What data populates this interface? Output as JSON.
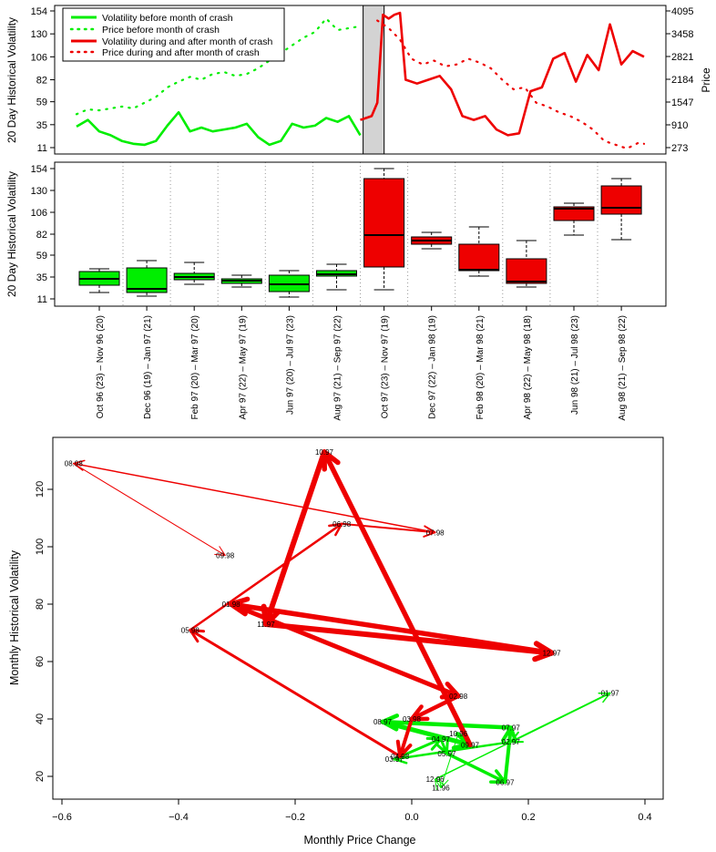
{
  "colors": {
    "before": "#00ee00",
    "after": "#ee0000",
    "crash_band": "#d3d3d3"
  },
  "chart_data": [
    {
      "type": "line",
      "panel": "top",
      "title": "",
      "ylabel": "20 Day Historical Volatility",
      "ylabel_right": "Price",
      "ylim": [
        11,
        154
      ],
      "yticks": [
        "11",
        "35",
        "59",
        "82",
        "106",
        "130",
        "154"
      ],
      "ytick_values": [
        11,
        35,
        59,
        82,
        106,
        130,
        154
      ],
      "right_ylim": [
        273,
        4095
      ],
      "right_yticks": [
        "273",
        "910",
        "1547",
        "2184",
        "2821",
        "3458",
        "4095"
      ],
      "right_ytick_values": [
        273,
        910,
        1547,
        2184,
        2821,
        3458,
        4095
      ],
      "x_index_range": [
        0,
        100
      ],
      "crash_band": [
        50.5,
        54.2
      ],
      "legend": [
        {
          "label": "Volatility before month of crash",
          "style": "solid",
          "series": "before"
        },
        {
          "label": "Price before month of crash",
          "style": "dotted",
          "series": "before"
        },
        {
          "label": "Volatility during and after month of crash",
          "style": "solid",
          "series": "after"
        },
        {
          "label": "Price during and after month of crash",
          "style": "dotted",
          "series": "after"
        }
      ],
      "series": [
        {
          "name": "Volatility before month of crash",
          "axis": "left",
          "x": [
            0,
            2,
            4,
            6,
            8,
            10,
            12,
            14,
            16,
            18,
            20,
            22,
            24,
            26,
            28,
            30,
            32,
            34,
            36,
            38,
            40,
            42,
            44,
            46,
            48,
            50
          ],
          "values": [
            33,
            40,
            28,
            24,
            18,
            15,
            14,
            18,
            34,
            48,
            28,
            32,
            28,
            30,
            32,
            36,
            22,
            14,
            18,
            36,
            32,
            34,
            42,
            38,
            44,
            24
          ]
        },
        {
          "name": "Price before month of crash",
          "axis": "left",
          "x": [
            0,
            2,
            4,
            6,
            8,
            10,
            12,
            14,
            16,
            18,
            20,
            22,
            24,
            26,
            28,
            30,
            32,
            34,
            36,
            38,
            40,
            42,
            44,
            46,
            48,
            50
          ],
          "values": [
            46,
            51,
            50,
            52,
            54,
            52,
            58,
            64,
            74,
            80,
            85,
            82,
            88,
            90,
            86,
            88,
            94,
            102,
            110,
            118,
            126,
            132,
            146,
            134,
            136,
            138
          ]
        },
        {
          "name": "Volatility during and after month of crash",
          "axis": "left",
          "x": [
            50,
            52,
            53,
            54,
            55,
            56,
            57,
            58,
            60,
            62,
            64,
            66,
            68,
            70,
            72,
            74,
            76,
            78,
            80,
            82,
            84,
            86,
            88,
            90,
            92,
            94,
            96,
            98,
            100
          ],
          "values": [
            40,
            44,
            58,
            150,
            146,
            150,
            152,
            82,
            78,
            82,
            86,
            72,
            44,
            40,
            44,
            30,
            24,
            26,
            70,
            74,
            104,
            110,
            80,
            108,
            92,
            140,
            98,
            112,
            106
          ]
        },
        {
          "name": "Price during and after month of crash",
          "axis": "left",
          "x": [
            53,
            55,
            57,
            59,
            61,
            63,
            65,
            67,
            69,
            71,
            73,
            75,
            77,
            79,
            81,
            83,
            85,
            87,
            89,
            91,
            93,
            95,
            97,
            99,
            100
          ],
          "values": [
            144,
            136,
            124,
            104,
            98,
            102,
            96,
            98,
            104,
            100,
            94,
            82,
            72,
            74,
            58,
            54,
            48,
            44,
            38,
            30,
            18,
            14,
            10,
            16,
            15
          ]
        }
      ]
    },
    {
      "type": "box",
      "panel": "middle",
      "ylabel": "20 Day Historical Volatility",
      "ylim": [
        11,
        154
      ],
      "yticks": [
        "11",
        "35",
        "59",
        "82",
        "106",
        "130",
        "154"
      ],
      "ytick_values": [
        11,
        35,
        59,
        82,
        106,
        130,
        154
      ],
      "categories": [
        "Oct 96 (23) – Nov 96 (20)",
        "Dec 96 (19) – Jan 97 (21)",
        "Feb 97 (20) – Mar 97 (20)",
        "Apr 97 (22) – May 97 (19)",
        "Jun 97 (20) – Jul 97 (23)",
        "Aug 97 (21) – Sep 97 (22)",
        "Oct 97 (23) – Nov 97 (19)",
        "Dec 97 (22) – Jan 98 (19)",
        "Feb 98 (20) – Mar 98 (21)",
        "Apr 98 (22) – May 98 (18)",
        "Jun 98 (21) – Jul 98 (23)",
        "Aug 98 (21) – Sep 98 (22)"
      ],
      "boxes": [
        {
          "min": 18,
          "q1": 26,
          "median": 33,
          "q3": 41,
          "max": 44,
          "group": "before"
        },
        {
          "min": 14,
          "q1": 18,
          "median": 22,
          "q3": 45,
          "max": 53,
          "group": "before"
        },
        {
          "min": 27,
          "q1": 32,
          "median": 35,
          "q3": 39,
          "max": 51,
          "group": "before"
        },
        {
          "min": 24,
          "q1": 28,
          "median": 31,
          "q3": 33,
          "max": 37,
          "group": "before"
        },
        {
          "min": 13,
          "q1": 19,
          "median": 27,
          "q3": 37,
          "max": 42,
          "group": "before"
        },
        {
          "min": 21,
          "q1": 36,
          "median": 38,
          "q3": 42,
          "max": 49,
          "group": "before"
        },
        {
          "min": 21,
          "q1": 46,
          "median": 81,
          "q3": 143,
          "max": 154,
          "group": "after"
        },
        {
          "min": 66,
          "q1": 71,
          "median": 75,
          "q3": 79,
          "max": 84,
          "group": "after"
        },
        {
          "min": 36,
          "q1": 42,
          "median": 43,
          "q3": 71,
          "max": 90,
          "group": "after"
        },
        {
          "min": 24,
          "q1": 28,
          "median": 30,
          "q3": 55,
          "max": 75,
          "group": "after"
        },
        {
          "min": 81,
          "q1": 97,
          "median": 110,
          "q3": 112,
          "max": 116,
          "group": "after"
        },
        {
          "min": 76,
          "q1": 104,
          "median": 111,
          "q3": 135,
          "max": 143,
          "group": "after"
        }
      ]
    },
    {
      "type": "scatter",
      "panel": "bottom",
      "xlabel": "Monthly Price Change",
      "ylabel": "Monthly Historical Volatility",
      "xlim": [
        -0.62,
        0.42
      ],
      "ylim": [
        14,
        133
      ],
      "xticks": [
        "−0.6",
        "−0.4",
        "−0.2",
        "0.0",
        "0.2",
        "0.4"
      ],
      "xtick_values": [
        -0.6,
        -0.4,
        -0.2,
        0.0,
        0.2,
        0.4
      ],
      "yticks": [
        "20",
        "40",
        "60",
        "80",
        "100",
        "120"
      ],
      "ytick_values": [
        20,
        40,
        60,
        80,
        100,
        120
      ],
      "points": [
        {
          "label": "11.96",
          "x": 0.05,
          "y": 16,
          "group": "before"
        },
        {
          "label": "12.96",
          "x": 0.04,
          "y": 19,
          "group": "before"
        },
        {
          "label": "01.97",
          "x": 0.34,
          "y": 49,
          "group": "before"
        },
        {
          "label": "02.97",
          "x": 0.17,
          "y": 32,
          "group": "before"
        },
        {
          "label": "03.97",
          "x": -0.03,
          "y": 26,
          "group": "before"
        },
        {
          "label": "04.97",
          "x": 0.05,
          "y": 33,
          "group": "before"
        },
        {
          "label": "05.97",
          "x": 0.06,
          "y": 28,
          "group": "before"
        },
        {
          "label": "06.97",
          "x": 0.16,
          "y": 18,
          "group": "before"
        },
        {
          "label": "07.97",
          "x": 0.17,
          "y": 37,
          "group": "before"
        },
        {
          "label": "08.97",
          "x": -0.05,
          "y": 39,
          "group": "before"
        },
        {
          "label": "09.97",
          "x": 0.1,
          "y": 31,
          "group": "before"
        },
        {
          "label": "10.96",
          "x": 0.08,
          "y": 35,
          "group": "before"
        },
        {
          "label": "10.97",
          "x": -0.15,
          "y": 133,
          "group": "after"
        },
        {
          "label": "11.97",
          "x": -0.25,
          "y": 73,
          "group": "after"
        },
        {
          "label": "12.97",
          "x": 0.24,
          "y": 63,
          "group": "after"
        },
        {
          "label": "01.98",
          "x": -0.31,
          "y": 80,
          "group": "after"
        },
        {
          "label": "02.98",
          "x": 0.08,
          "y": 48,
          "group": "after"
        },
        {
          "label": "03.98",
          "x": 0.0,
          "y": 40,
          "group": "after"
        },
        {
          "label": "04.98",
          "x": -0.02,
          "y": 27,
          "group": "after"
        },
        {
          "label": "05.98",
          "x": -0.38,
          "y": 71,
          "group": "after"
        },
        {
          "label": "06.98",
          "x": -0.12,
          "y": 108,
          "group": "after"
        },
        {
          "label": "07.98",
          "x": 0.04,
          "y": 105,
          "group": "after"
        },
        {
          "label": "08.98",
          "x": -0.58,
          "y": 129,
          "group": "after"
        },
        {
          "label": "09.98",
          "x": -0.32,
          "y": 97,
          "group": "after"
        }
      ],
      "arrows": [
        {
          "from": "10.96",
          "to": "11.96",
          "width": 1,
          "group": "before"
        },
        {
          "from": "11.96",
          "to": "12.96",
          "width": 1,
          "group": "before"
        },
        {
          "from": "12.96",
          "to": "01.97",
          "width": 1.5,
          "group": "before"
        },
        {
          "from": "01.97",
          "to": "02.97",
          "width": 2,
          "group": "before"
        },
        {
          "from": "02.97",
          "to": "03.97",
          "width": 2.5,
          "group": "before"
        },
        {
          "from": "03.97",
          "to": "04.97",
          "width": 3,
          "group": "before"
        },
        {
          "from": "04.97",
          "to": "05.97",
          "width": 3,
          "group": "before"
        },
        {
          "from": "05.97",
          "to": "06.97",
          "width": 3.5,
          "group": "before"
        },
        {
          "from": "06.97",
          "to": "07.97",
          "width": 4,
          "group": "before"
        },
        {
          "from": "07.97",
          "to": "08.97",
          "width": 4.5,
          "group": "before"
        },
        {
          "from": "08.97",
          "to": "09.97",
          "width": 5,
          "group": "before"
        },
        {
          "from": "09.97",
          "to": "10.97",
          "width": 5.5,
          "group": "after"
        },
        {
          "from": "10.97",
          "to": "11.97",
          "width": 6,
          "group": "after"
        },
        {
          "from": "11.97",
          "to": "12.97",
          "width": 6,
          "group": "after"
        },
        {
          "from": "12.97",
          "to": "01.98",
          "width": 5.5,
          "group": "after"
        },
        {
          "from": "01.98",
          "to": "02.98",
          "width": 5,
          "group": "after"
        },
        {
          "from": "02.98",
          "to": "03.98",
          "width": 4.5,
          "group": "after"
        },
        {
          "from": "03.98",
          "to": "04.98",
          "width": 4,
          "group": "after"
        },
        {
          "from": "04.98",
          "to": "05.98",
          "width": 3,
          "group": "after"
        },
        {
          "from": "05.98",
          "to": "06.98",
          "width": 2.5,
          "group": "after"
        },
        {
          "from": "06.98",
          "to": "07.98",
          "width": 2,
          "group": "after"
        },
        {
          "from": "07.98",
          "to": "08.98",
          "width": 1.5,
          "group": "after"
        },
        {
          "from": "08.98",
          "to": "09.98",
          "width": 1,
          "group": "after"
        }
      ]
    }
  ]
}
